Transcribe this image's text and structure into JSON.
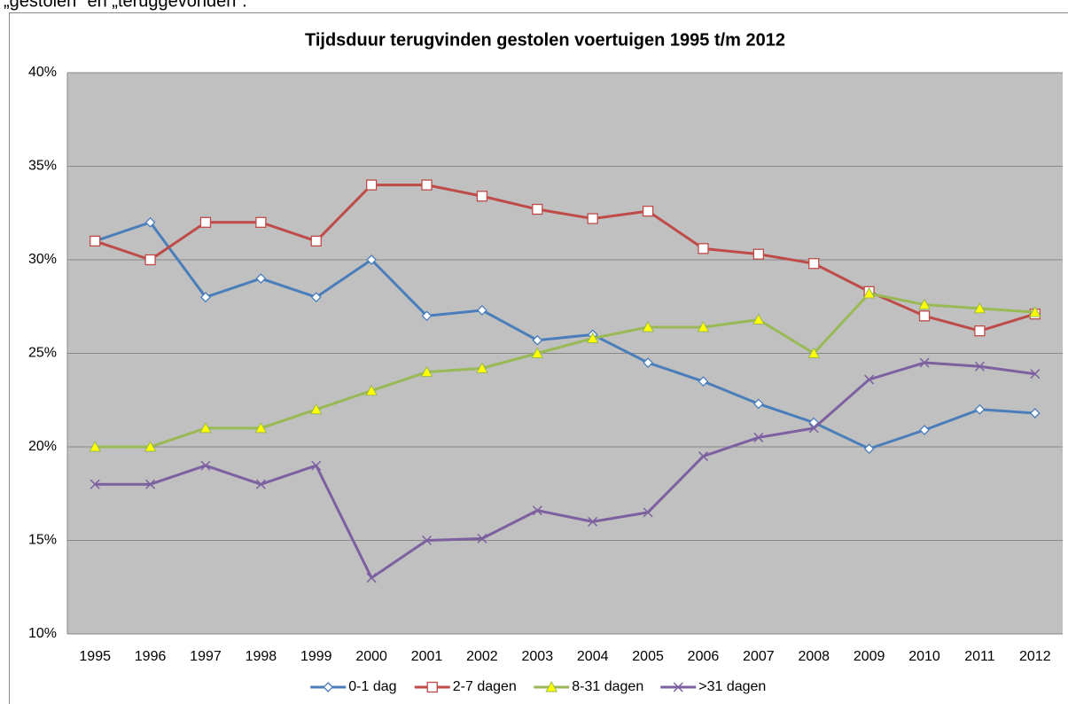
{
  "page_text": "„gestolen” en „teruggevonden”.",
  "chart_data": {
    "type": "line",
    "title": "Tijdsduur terugvinden gestolen voertuigen 1995 t/m 2012",
    "categories": [
      "1995",
      "1996",
      "1997",
      "1998",
      "1999",
      "2000",
      "2001",
      "2002",
      "2003",
      "2004",
      "2005",
      "2006",
      "2007",
      "2008",
      "2009",
      "2010",
      "2011",
      "2012"
    ],
    "series": [
      {
        "name": "0-1 dag",
        "color": "#4a7ebb",
        "marker": "diamond",
        "values": [
          31,
          32,
          28,
          29,
          28,
          30,
          27,
          27.3,
          25.7,
          26,
          24.5,
          23.5,
          22.3,
          21.3,
          19.9,
          20.9,
          22,
          21.8
        ]
      },
      {
        "name": "2-7 dagen",
        "color": "#be4b48",
        "marker": "square",
        "values": [
          31,
          30,
          32,
          32,
          31,
          34,
          34,
          33.4,
          32.7,
          32.2,
          32.6,
          30.6,
          30.3,
          29.8,
          28.3,
          27,
          26.2,
          27.1
        ]
      },
      {
        "name": "8-31 dagen",
        "color": "#98b954",
        "marker": "triangle",
        "values": [
          20,
          20,
          21,
          21,
          22,
          23,
          24,
          24.2,
          25,
          25.8,
          26.4,
          26.4,
          26.8,
          25,
          28.2,
          27.6,
          27.4,
          27.2
        ]
      },
      {
        "name": ">31 dagen",
        "color": "#7d60a0",
        "marker": "x",
        "values": [
          18,
          18,
          19,
          18,
          19,
          13,
          15,
          15.1,
          16.6,
          16,
          16.5,
          19.5,
          20.5,
          21,
          23.6,
          24.5,
          24.3,
          23.9
        ]
      }
    ],
    "ylim": [
      10,
      40
    ],
    "yticks": [
      {
        "value": 10,
        "label": "10%"
      },
      {
        "value": 15,
        "label": "15%"
      },
      {
        "value": 20,
        "label": "20%"
      },
      {
        "value": 25,
        "label": "25%"
      },
      {
        "value": 30,
        "label": "30%"
      },
      {
        "value": 35,
        "label": "35%"
      },
      {
        "value": 40,
        "label": "40%"
      }
    ],
    "grid": true,
    "legend": "bottom"
  }
}
